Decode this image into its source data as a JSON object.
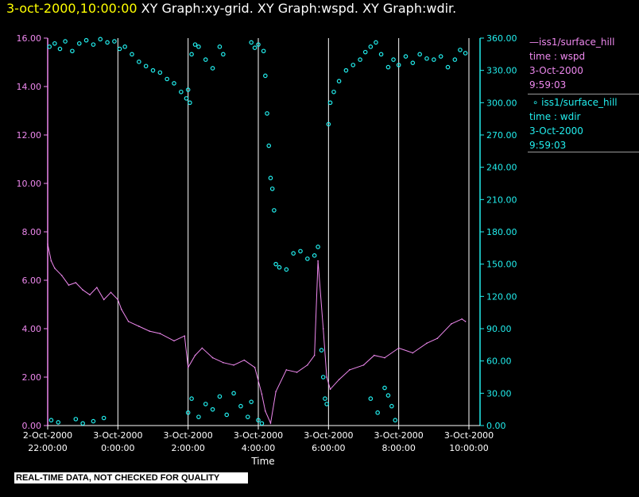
{
  "header": {
    "time_label": "3-oct-2000,10:00:00",
    "graphs_label": "XY Graph:xy-grid.  XY Graph:wspd.  XY Graph:wdir."
  },
  "legend": {
    "wspd": {
      "line1": "iss1/surface_hill",
      "line2": "time : wspd",
      "line3": "3-Oct-2000",
      "line4": "9:59:03"
    },
    "wdir": {
      "line1": "iss1/surface_hill",
      "line2": "time : wdir",
      "line3": "3-Oct-2000",
      "line4": "9:59:03"
    }
  },
  "banner": "REAL-TIME DATA, NOT CHECKED FOR QUALITY",
  "colors": {
    "wspd": "#ee88ee",
    "wdir": "#22eeee",
    "grid": "#ffffff",
    "background": "#000000",
    "title_time": "#ffff00"
  },
  "chart_data": {
    "type": "line",
    "xlabel": "Time",
    "x_range_hours": [
      22,
      34
    ],
    "x_ticks": [
      {
        "t": 22,
        "date": "2-Oct-2000",
        "time": "22:00:00"
      },
      {
        "t": 24,
        "date": "3-Oct-2000",
        "time": "0:00:00"
      },
      {
        "t": 26,
        "date": "3-Oct-2000",
        "time": "2:00:00"
      },
      {
        "t": 28,
        "date": "3-Oct-2000",
        "time": "4:00:00"
      },
      {
        "t": 30,
        "date": "3-Oct-2000",
        "time": "6:00:00"
      },
      {
        "t": 32,
        "date": "3-Oct-2000",
        "time": "8:00:00"
      },
      {
        "t": 34,
        "date": "3-Oct-2000",
        "time": "10:00:00"
      }
    ],
    "y_left": {
      "range": [
        0,
        16
      ],
      "ticks": [
        "0.00",
        "2.00",
        "4.00",
        "6.00",
        "8.00",
        "10.00",
        "12.00",
        "14.00",
        "16.00"
      ]
    },
    "y_right": {
      "range": [
        0,
        360
      ],
      "ticks": [
        "0.00",
        "30.00",
        "60.00",
        "90.00",
        "120.00",
        "150.00",
        "180.00",
        "210.00",
        "240.00",
        "270.00",
        "300.00",
        "330.00",
        "360.00"
      ]
    },
    "grid": "vertical",
    "series": [
      {
        "name": "iss1/surface_hill time : wspd",
        "kind": "line",
        "axis": "left",
        "points": [
          [
            22.0,
            7.5
          ],
          [
            22.1,
            6.8
          ],
          [
            22.2,
            6.5
          ],
          [
            22.4,
            6.2
          ],
          [
            22.6,
            5.8
          ],
          [
            22.8,
            5.9
          ],
          [
            23.0,
            5.6
          ],
          [
            23.2,
            5.4
          ],
          [
            23.4,
            5.7
          ],
          [
            23.6,
            5.2
          ],
          [
            23.8,
            5.5
          ],
          [
            24.0,
            5.2
          ],
          [
            24.1,
            4.8
          ],
          [
            24.3,
            4.3
          ],
          [
            24.6,
            4.1
          ],
          [
            24.9,
            3.9
          ],
          [
            25.2,
            3.8
          ],
          [
            25.6,
            3.5
          ],
          [
            25.9,
            3.7
          ],
          [
            26.0,
            2.4
          ],
          [
            26.2,
            2.9
          ],
          [
            26.4,
            3.2
          ],
          [
            26.7,
            2.8
          ],
          [
            27.0,
            2.6
          ],
          [
            27.3,
            2.5
          ],
          [
            27.6,
            2.7
          ],
          [
            27.9,
            2.4
          ],
          [
            28.1,
            1.3
          ],
          [
            28.2,
            0.6
          ],
          [
            28.35,
            0.1
          ],
          [
            28.5,
            1.4
          ],
          [
            28.8,
            2.3
          ],
          [
            29.1,
            2.2
          ],
          [
            29.4,
            2.5
          ],
          [
            29.6,
            2.9
          ],
          [
            29.7,
            6.8
          ],
          [
            29.85,
            4.0
          ],
          [
            29.95,
            2.0
          ],
          [
            30.05,
            1.5
          ],
          [
            30.3,
            1.9
          ],
          [
            30.6,
            2.3
          ],
          [
            31.0,
            2.5
          ],
          [
            31.3,
            2.9
          ],
          [
            31.6,
            2.8
          ],
          [
            32.0,
            3.2
          ],
          [
            32.4,
            3.0
          ],
          [
            32.8,
            3.4
          ],
          [
            33.1,
            3.6
          ],
          [
            33.5,
            4.2
          ],
          [
            33.8,
            4.4
          ],
          [
            33.9,
            4.3
          ]
        ]
      },
      {
        "name": "iss1/surface_hill time : wdir",
        "kind": "scatter",
        "axis": "right",
        "points": [
          [
            22.05,
            352
          ],
          [
            22.2,
            355
          ],
          [
            22.35,
            350
          ],
          [
            22.5,
            357
          ],
          [
            22.7,
            348
          ],
          [
            22.9,
            355
          ],
          [
            23.1,
            358
          ],
          [
            23.3,
            354
          ],
          [
            23.5,
            359
          ],
          [
            23.7,
            356
          ],
          [
            23.9,
            357
          ],
          [
            24.05,
            350
          ],
          [
            24.2,
            352
          ],
          [
            24.4,
            345
          ],
          [
            24.6,
            338
          ],
          [
            24.8,
            334
          ],
          [
            25.0,
            330
          ],
          [
            25.2,
            328
          ],
          [
            25.4,
            322
          ],
          [
            25.6,
            318
          ],
          [
            25.8,
            310
          ],
          [
            25.95,
            304
          ],
          [
            26.0,
            312
          ],
          [
            26.05,
            300
          ],
          [
            26.1,
            345
          ],
          [
            26.2,
            354
          ],
          [
            26.3,
            352
          ],
          [
            26.5,
            340
          ],
          [
            26.7,
            332
          ],
          [
            26.9,
            352
          ],
          [
            27.0,
            345
          ],
          [
            27.8,
            356
          ],
          [
            27.9,
            351
          ],
          [
            28.0,
            354
          ],
          [
            28.15,
            348
          ],
          [
            28.2,
            325
          ],
          [
            28.25,
            290
          ],
          [
            28.3,
            260
          ],
          [
            28.35,
            230
          ],
          [
            28.4,
            220
          ],
          [
            28.45,
            200
          ],
          [
            28.5,
            150
          ],
          [
            28.6,
            147
          ],
          [
            28.8,
            145
          ],
          [
            29.0,
            160
          ],
          [
            29.2,
            162
          ],
          [
            29.4,
            155
          ],
          [
            29.6,
            158
          ],
          [
            29.7,
            166
          ],
          [
            29.8,
            70
          ],
          [
            29.85,
            45
          ],
          [
            29.9,
            25
          ],
          [
            29.95,
            20
          ],
          [
            30.0,
            280
          ],
          [
            30.05,
            300
          ],
          [
            30.15,
            310
          ],
          [
            30.3,
            320
          ],
          [
            30.5,
            330
          ],
          [
            30.7,
            335
          ],
          [
            30.9,
            340
          ],
          [
            31.05,
            347
          ],
          [
            31.2,
            352
          ],
          [
            31.35,
            356
          ],
          [
            31.5,
            345
          ],
          [
            31.7,
            333
          ],
          [
            31.85,
            340
          ],
          [
            32.0,
            335
          ],
          [
            32.2,
            343
          ],
          [
            32.4,
            337
          ],
          [
            32.6,
            345
          ],
          [
            32.8,
            341
          ],
          [
            33.0,
            340
          ],
          [
            33.2,
            343
          ],
          [
            33.4,
            333
          ],
          [
            33.6,
            340
          ],
          [
            33.75,
            349
          ],
          [
            33.9,
            346
          ],
          [
            22.1,
            5
          ],
          [
            22.3,
            3
          ],
          [
            22.8,
            6
          ],
          [
            23.0,
            2
          ],
          [
            23.3,
            4
          ],
          [
            23.6,
            7
          ],
          [
            26.0,
            12
          ],
          [
            26.1,
            25
          ],
          [
            26.3,
            8
          ],
          [
            26.5,
            20
          ],
          [
            26.7,
            15
          ],
          [
            26.9,
            27
          ],
          [
            27.1,
            10
          ],
          [
            27.3,
            30
          ],
          [
            27.5,
            18
          ],
          [
            27.7,
            8
          ],
          [
            27.8,
            22
          ],
          [
            28.0,
            5
          ],
          [
            28.1,
            2
          ],
          [
            31.2,
            25
          ],
          [
            31.4,
            12
          ],
          [
            31.6,
            35
          ],
          [
            31.7,
            28
          ],
          [
            31.8,
            18
          ],
          [
            31.9,
            5
          ]
        ]
      }
    ]
  }
}
